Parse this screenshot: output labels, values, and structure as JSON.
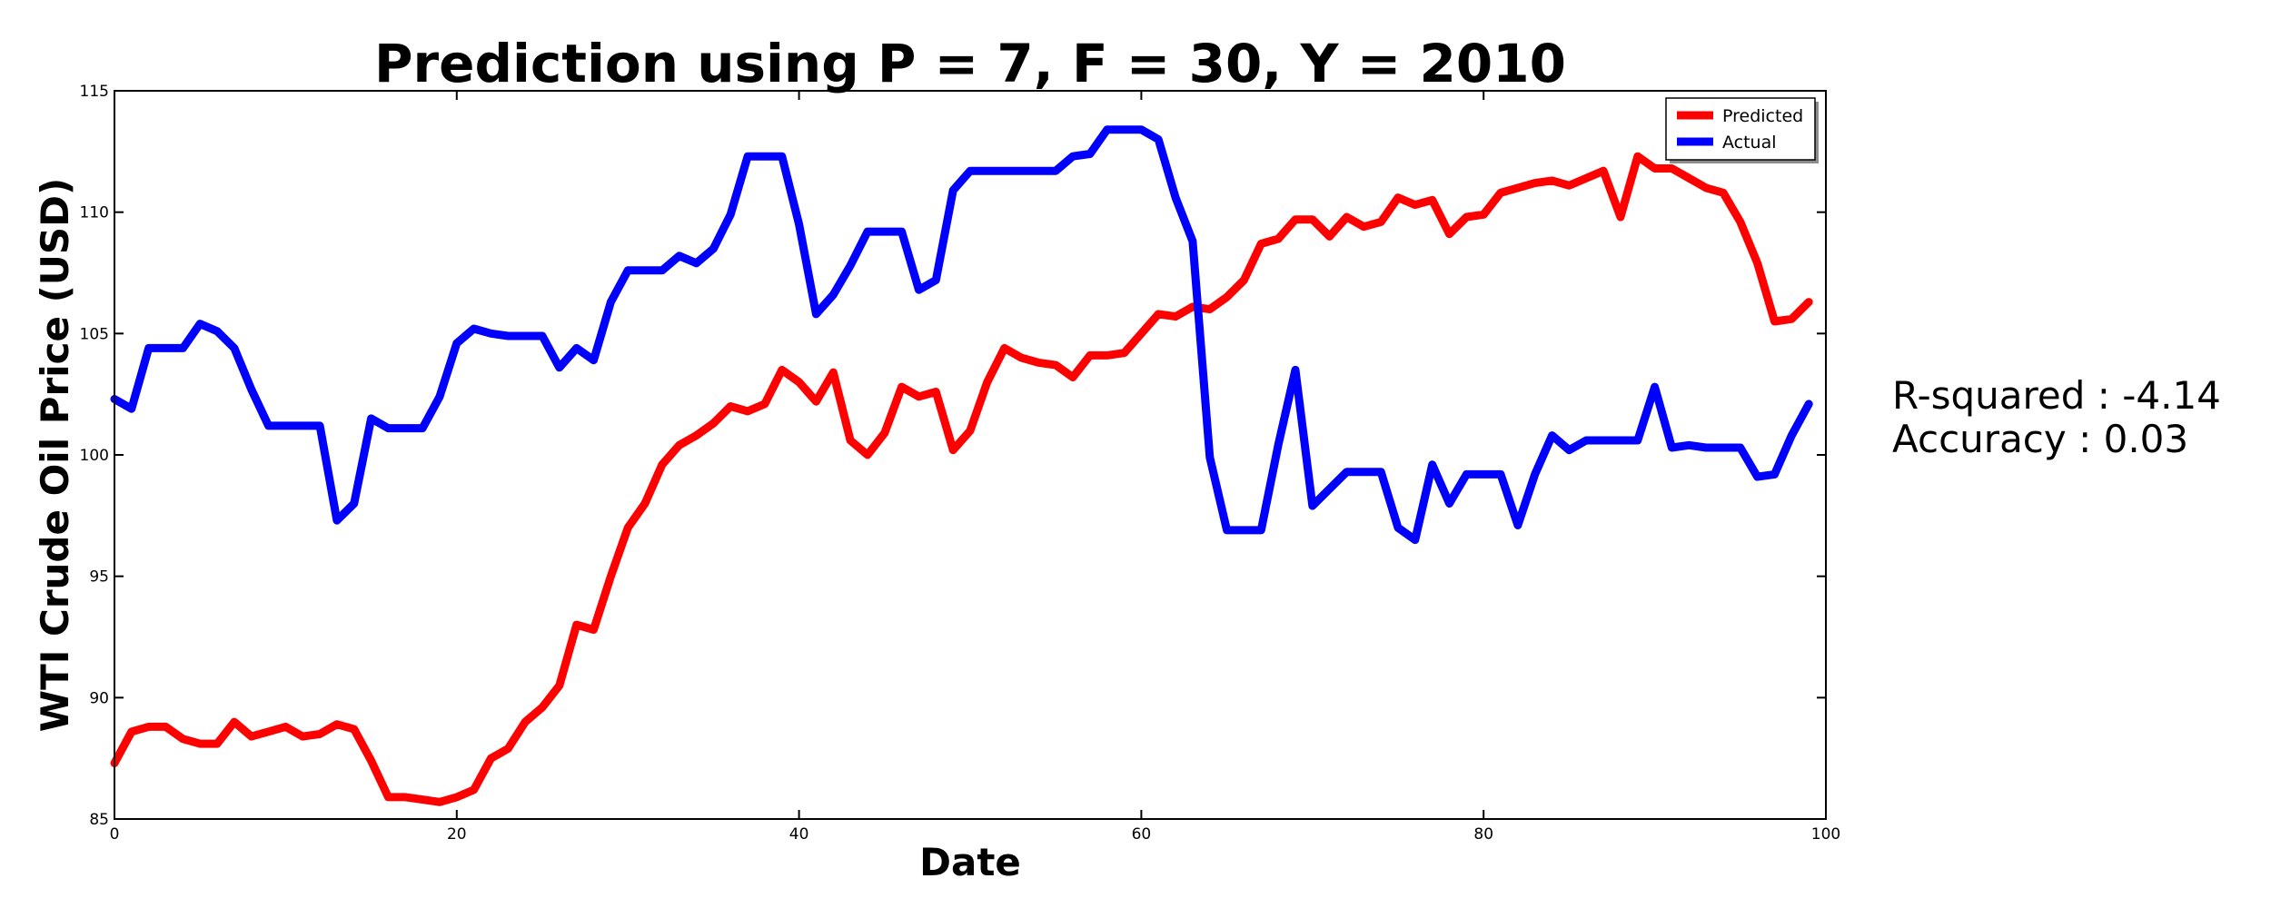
{
  "chart_data": {
    "type": "line",
    "title": "Prediction using P = 7, F = 30, Y = 2010",
    "xlabel": "Date",
    "ylabel": "WTI Crude Oil Price (USD)",
    "xlim": [
      0,
      100
    ],
    "ylim": [
      85,
      115
    ],
    "x_ticks": [
      0,
      20,
      40,
      60,
      80,
      100
    ],
    "y_ticks": [
      85,
      90,
      95,
      100,
      105,
      110,
      115
    ],
    "grid": false,
    "legend_position": "top-right",
    "x": [
      0,
      1,
      2,
      3,
      4,
      5,
      6,
      7,
      8,
      9,
      10,
      11,
      12,
      13,
      14,
      15,
      16,
      17,
      18,
      19,
      20,
      21,
      22,
      23,
      24,
      25,
      26,
      27,
      28,
      29,
      30,
      31,
      32,
      33,
      34,
      35,
      36,
      37,
      38,
      39,
      40,
      41,
      42,
      43,
      44,
      45,
      46,
      47,
      48,
      49,
      50,
      51,
      52,
      53,
      54,
      55,
      56,
      57,
      58,
      59,
      60,
      61,
      62,
      63,
      64,
      65,
      66,
      67,
      68,
      69,
      70,
      71,
      72,
      73,
      74,
      75,
      76,
      77,
      78,
      79,
      80,
      81,
      82,
      83,
      84,
      85,
      86,
      87,
      88,
      89,
      90,
      91,
      92,
      93,
      94,
      95,
      96,
      97,
      98,
      99
    ],
    "series": [
      {
        "name": "Predicted",
        "color": "#ff0000",
        "values": [
          87.3,
          88.6,
          88.8,
          88.8,
          88.3,
          88.1,
          88.1,
          89.0,
          88.4,
          88.6,
          88.8,
          88.4,
          88.5,
          88.9,
          88.7,
          87.4,
          85.9,
          85.9,
          85.8,
          85.7,
          85.9,
          86.2,
          87.5,
          87.9,
          89.0,
          89.6,
          90.5,
          93.0,
          92.8,
          95.0,
          97.0,
          98.0,
          99.6,
          100.4,
          100.8,
          101.3,
          102.0,
          101.8,
          102.1,
          103.5,
          103.0,
          102.2,
          103.4,
          100.6,
          100.0,
          100.9,
          102.8,
          102.4,
          102.6,
          100.2,
          101.0,
          103.0,
          104.4,
          104.0,
          103.8,
          103.7,
          103.2,
          104.1,
          104.1,
          104.2,
          105.0,
          105.8,
          105.7,
          106.1,
          106.0,
          106.5,
          107.2,
          108.7,
          108.9,
          109.7,
          109.7,
          109.0,
          109.8,
          109.4,
          109.6,
          110.6,
          110.3,
          110.5,
          109.1,
          109.8,
          109.9,
          110.8,
          111.0,
          111.2,
          111.3,
          111.1,
          111.4,
          111.7,
          109.8,
          112.3,
          111.8,
          111.8,
          111.4,
          111.0,
          110.8,
          109.6,
          107.9,
          105.5,
          105.6,
          106.3
        ]
      },
      {
        "name": "Actual",
        "color": "#0000ff",
        "values": [
          102.3,
          101.9,
          104.4,
          104.4,
          104.4,
          105.4,
          105.1,
          104.4,
          102.7,
          101.2,
          101.2,
          101.2,
          101.2,
          97.3,
          98.0,
          101.5,
          101.1,
          101.1,
          101.1,
          102.4,
          104.6,
          105.2,
          105.0,
          104.9,
          104.9,
          104.9,
          103.6,
          104.4,
          103.9,
          106.3,
          107.6,
          107.6,
          107.6,
          108.2,
          107.9,
          108.5,
          109.9,
          112.3,
          112.3,
          112.3,
          109.5,
          105.8,
          106.6,
          107.8,
          109.2,
          109.2,
          109.2,
          106.8,
          107.2,
          110.9,
          111.7,
          111.7,
          111.7,
          111.7,
          111.7,
          111.7,
          112.3,
          112.4,
          113.4,
          113.4,
          113.4,
          113.0,
          110.6,
          108.8,
          99.9,
          96.9,
          96.9,
          96.9,
          100.4,
          103.5,
          97.9,
          98.6,
          99.3,
          99.3,
          99.3,
          97.0,
          96.5,
          99.6,
          98.0,
          99.2,
          99.2,
          99.2,
          97.1,
          99.2,
          100.8,
          100.2,
          100.6,
          100.6,
          100.6,
          100.6,
          102.8,
          100.3,
          100.4,
          100.3,
          100.3,
          100.3,
          99.1,
          99.2,
          100.8,
          102.1
        ]
      }
    ]
  },
  "stats": {
    "r_squared": "R-squared : -4.14",
    "accuracy": "Accuracy : 0.03"
  }
}
